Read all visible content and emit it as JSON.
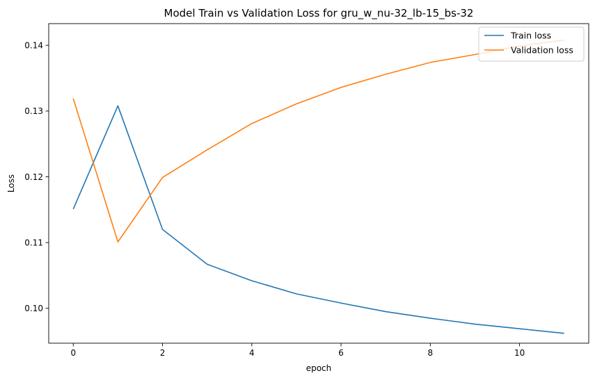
{
  "chart_data": {
    "type": "line",
    "title": "Model Train vs Validation Loss for gru_w_nu-32_lb-15_bs-32",
    "xlabel": "epoch",
    "ylabel": "Loss",
    "x": [
      0,
      1,
      2,
      3,
      4,
      5,
      6,
      7,
      8,
      9,
      10,
      11
    ],
    "xlim": [
      -0.55,
      11.55
    ],
    "ylim": [
      0.0947,
      0.1433
    ],
    "xticks": [
      0,
      2,
      4,
      6,
      8,
      10
    ],
    "xtick_labels": [
      "0",
      "2",
      "4",
      "6",
      "8",
      "10"
    ],
    "yticks": [
      0.1,
      0.11,
      0.12,
      0.13,
      0.14
    ],
    "ytick_labels": [
      "0.10",
      "0.11",
      "0.12",
      "0.13",
      "0.14"
    ],
    "grid": false,
    "legend_position": "top-right",
    "series": [
      {
        "name": "Train loss",
        "color": "#1f77b4",
        "values": [
          0.1151,
          0.1308,
          0.112,
          0.1067,
          0.1042,
          0.1022,
          0.1008,
          0.0995,
          0.0985,
          0.0976,
          0.0969,
          0.0962
        ]
      },
      {
        "name": "Validation loss",
        "color": "#ff7f0e",
        "values": [
          0.1319,
          0.1101,
          0.1199,
          0.1241,
          0.1281,
          0.1311,
          0.1336,
          0.1356,
          0.1374,
          0.1386,
          0.1399,
          0.1408
        ]
      }
    ]
  }
}
